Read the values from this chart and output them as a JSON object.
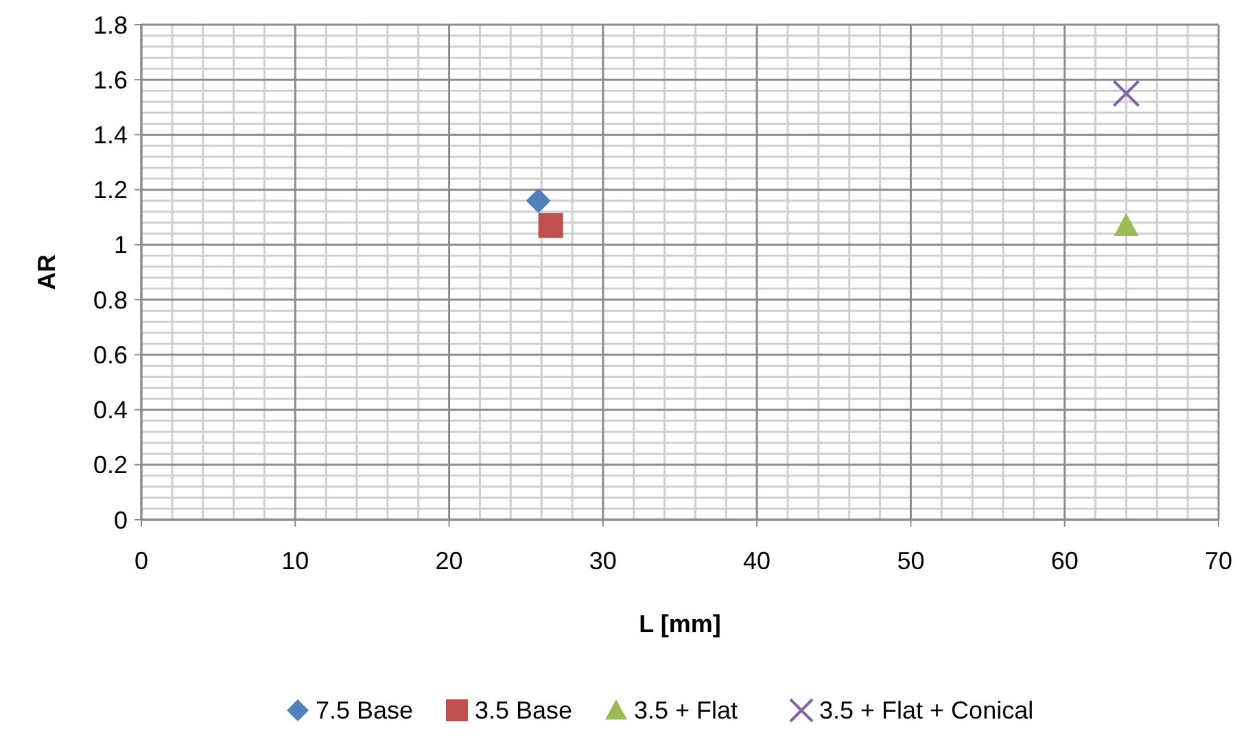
{
  "chart_data": {
    "type": "scatter",
    "xlabel": "L [mm]",
    "ylabel": "AR",
    "xlim": [
      0,
      70
    ],
    "xticks": [
      0,
      10,
      20,
      30,
      40,
      50,
      60,
      70
    ],
    "ylim": [
      0,
      1.8
    ],
    "yticks": [
      0,
      {
        "value": 0.2,
        "label": "0.2"
      },
      {
        "value": 0.4,
        "label": "0.4"
      },
      {
        "value": 0.6,
        "label": "0.6"
      },
      {
        "value": 0.8,
        "label": "0.8"
      },
      1,
      {
        "value": 1.2,
        "label": "1.2"
      },
      {
        "value": 1.4,
        "label": "1.4"
      },
      {
        "value": 1.6,
        "label": "1.6"
      },
      {
        "value": 1.8,
        "label": "1.8"
      }
    ],
    "grid": true,
    "legend": "bottom",
    "series": [
      {
        "name": "7.5 Base",
        "color": "#4f81bd",
        "marker": "diamond",
        "x": [
          25.8
        ],
        "values": [
          1.16
        ]
      },
      {
        "name": "3.5 Base",
        "color": "#c0504d",
        "marker": "square",
        "x": [
          26.6
        ],
        "values": [
          1.07
        ]
      },
      {
        "name": "3.5 + Flat",
        "color": "#9bbb59",
        "marker": "triangle",
        "x": [
          64
        ],
        "values": [
          1.07
        ]
      },
      {
        "name": "3.5 + Flat + Conical",
        "color": "#8064a2",
        "marker": "cross",
        "x": [
          64
        ],
        "values": [
          1.55
        ]
      }
    ]
  }
}
